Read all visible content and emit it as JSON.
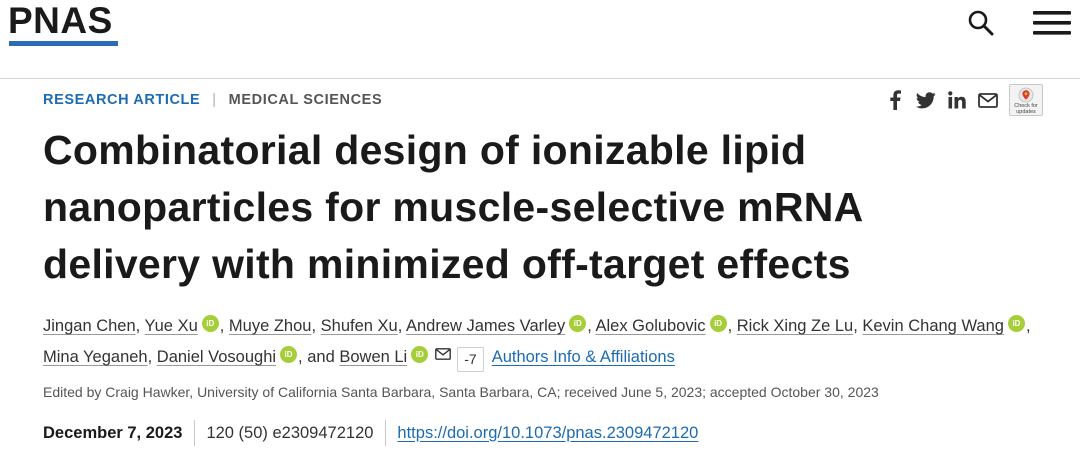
{
  "header": {
    "logo_text": "PNAS",
    "accent_color": "#2b6cb5",
    "icons": [
      "search-icon",
      "menu-icon"
    ]
  },
  "category": {
    "primary": "RESEARCH ARTICLE",
    "separator": "|",
    "secondary": "MEDICAL SCIENCES"
  },
  "share": {
    "icons": [
      "facebook-icon",
      "twitter-icon",
      "linkedin-icon",
      "email-icon"
    ],
    "updates_badge": {
      "line1": "Check for",
      "line2": "updates"
    }
  },
  "article": {
    "title_lines": [
      "Combinatorial design of ionizable lipid",
      "nanoparticles for muscle-selective mRNA",
      "delivery with minimized off-target effects"
    ]
  },
  "authors": {
    "list": [
      {
        "name": "Jingan Chen",
        "orcid": false,
        "sep": ", "
      },
      {
        "name": "Yue Xu",
        "orcid": true,
        "sep": ", "
      },
      {
        "name": "Muye Zhou",
        "orcid": false,
        "sep": ", "
      },
      {
        "name": "Shufen Xu",
        "orcid": false,
        "sep": ", "
      },
      {
        "name": "Andrew James Varley",
        "orcid": true,
        "sep": ", "
      },
      {
        "name": "Alex Golubovic",
        "orcid": true,
        "sep": ", "
      },
      {
        "name": "Rick Xing Ze Lu",
        "orcid": false,
        "sep": ", "
      },
      {
        "name": "Kevin Chang Wang",
        "orcid": true,
        "sep": ", "
      },
      {
        "name": "Mina Yeganeh",
        "orcid": false,
        "sep": ", "
      },
      {
        "name": "Daniel Vosoughi",
        "orcid": true,
        "sep": ", and "
      },
      {
        "name": "Bowen Li",
        "orcid": true,
        "sep": ""
      }
    ],
    "orcid_label": "iD",
    "orcid_color": "#a6ce39",
    "more_count": "-7",
    "affiliations_link": "Authors Info & Affiliations"
  },
  "edited_by": "Edited by Craig Hawker, University of California Santa Barbara, Santa Barbara, CA; received June 5, 2023; accepted October 30, 2023",
  "meta": {
    "date": "December 7, 2023",
    "citation": "120 (50) e2309472120",
    "doi": "https://doi.org/10.1073/pnas.2309472120"
  }
}
